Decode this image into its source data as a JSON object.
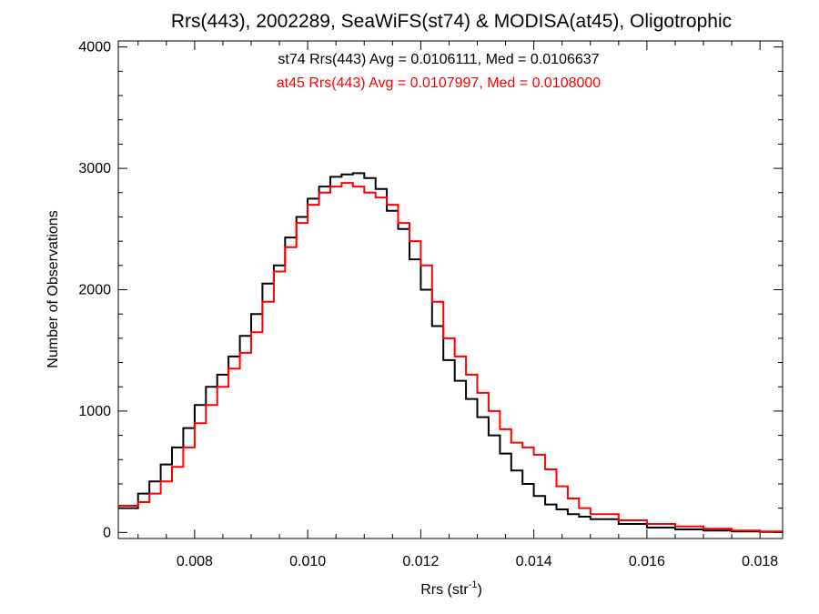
{
  "chart_data": {
    "type": "line",
    "title": "Rrs(443), 2002289, SeaWiFS(st74) & MODISA(at45), Oligotrophic",
    "xlabel": "Rrs (str",
    "xlabel_sup": "-1",
    "xlabel_close": ")",
    "ylabel": "Number of Observations",
    "xlim": [
      0.00665,
      0.0184
    ],
    "ylim": [
      -50,
      4050
    ],
    "xticks": [
      0.008,
      0.01,
      0.012,
      0.014,
      0.016,
      0.018
    ],
    "xtick_labels": [
      "0.008",
      "0.010",
      "0.012",
      "0.014",
      "0.016",
      "0.018"
    ],
    "yticks": [
      0,
      1000,
      2000,
      3000,
      4000
    ],
    "ytick_labels": [
      "0",
      "1000",
      "2000",
      "3000",
      "4000"
    ],
    "annotations": [
      {
        "text": "st74 Rrs(443) Avg = 0.0106111, Med = 0.0106637",
        "color": "#000000"
      },
      {
        "text": "at45 Rrs(443) Avg = 0.0107997, Med = 0.0108000",
        "color": "#ff0000"
      }
    ],
    "series": [
      {
        "color": "#000000",
        "x": [
          0.00665,
          0.007,
          0.0072,
          0.0074,
          0.0076,
          0.0078,
          0.008,
          0.0082,
          0.0084,
          0.0086,
          0.0088,
          0.009,
          0.0092,
          0.0094,
          0.0096,
          0.0098,
          0.01,
          0.0102,
          0.0104,
          0.0106,
          0.0108,
          0.011,
          0.0112,
          0.0114,
          0.0116,
          0.0118,
          0.012,
          0.0122,
          0.0124,
          0.0126,
          0.0128,
          0.013,
          0.0132,
          0.0134,
          0.0136,
          0.0138,
          0.014,
          0.0142,
          0.0144,
          0.0146,
          0.0148,
          0.015,
          0.0155,
          0.016,
          0.0165,
          0.017,
          0.0175,
          0.018,
          0.0184
        ],
        "y": [
          200,
          320,
          420,
          560,
          700,
          860,
          1050,
          1200,
          1300,
          1450,
          1620,
          1800,
          2050,
          2200,
          2430,
          2600,
          2750,
          2850,
          2930,
          2950,
          2960,
          2920,
          2830,
          2650,
          2500,
          2250,
          2000,
          1700,
          1420,
          1250,
          1100,
          950,
          800,
          650,
          510,
          400,
          300,
          230,
          190,
          150,
          130,
          110,
          70,
          40,
          25,
          15,
          8,
          4,
          2
        ]
      },
      {
        "color": "#ff0000",
        "x": [
          0.00665,
          0.007,
          0.0072,
          0.0074,
          0.0076,
          0.0078,
          0.008,
          0.0082,
          0.0084,
          0.0086,
          0.0088,
          0.009,
          0.0092,
          0.0094,
          0.0096,
          0.0098,
          0.01,
          0.0102,
          0.0104,
          0.0106,
          0.0108,
          0.011,
          0.0112,
          0.0114,
          0.0116,
          0.0118,
          0.012,
          0.0122,
          0.0124,
          0.0126,
          0.0128,
          0.013,
          0.0132,
          0.0134,
          0.0136,
          0.0138,
          0.014,
          0.0142,
          0.0144,
          0.0146,
          0.0148,
          0.015,
          0.0155,
          0.016,
          0.0165,
          0.017,
          0.0175,
          0.018,
          0.0184
        ],
        "y": [
          220,
          250,
          320,
          420,
          540,
          700,
          900,
          1050,
          1200,
          1350,
          1480,
          1650,
          1900,
          2150,
          2350,
          2550,
          2700,
          2800,
          2850,
          2880,
          2850,
          2800,
          2760,
          2700,
          2550,
          2400,
          2200,
          1900,
          1600,
          1450,
          1300,
          1150,
          1000,
          850,
          740,
          700,
          640,
          520,
          380,
          280,
          200,
          150,
          100,
          70,
          50,
          30,
          15,
          8,
          4
        ]
      }
    ]
  }
}
